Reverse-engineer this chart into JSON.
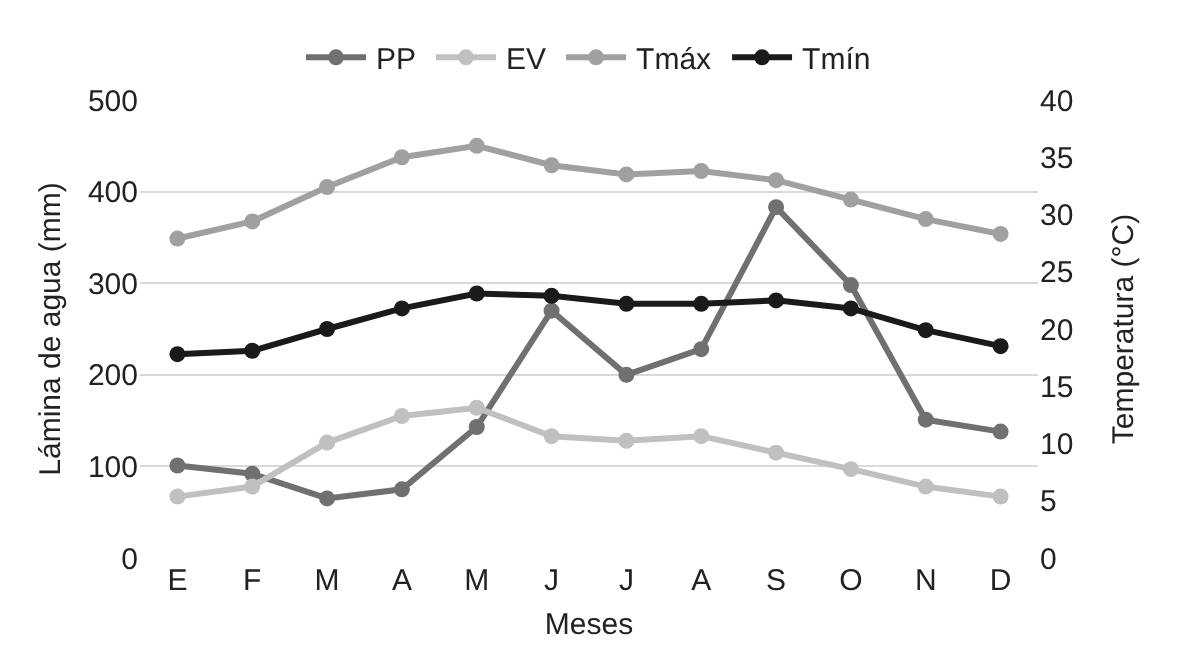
{
  "chart_data": {
    "type": "line",
    "xlabel": "Meses",
    "ylabel": "Lámina de agua (mm)",
    "y2label": "Temperatura (°C)",
    "categories": [
      "E",
      "F",
      "M",
      "A",
      "M",
      "J",
      "J",
      "A",
      "S",
      "O",
      "N",
      "D"
    ],
    "series": [
      {
        "name": "PP",
        "color": "#707070",
        "values": [
          101,
          92,
          65,
          75,
          143,
          270,
          200,
          228,
          383,
          298,
          151,
          138
        ]
      },
      {
        "name": "EV",
        "color": "#c0c0c0",
        "values": [
          67,
          78,
          126,
          155,
          164,
          133,
          128,
          133,
          115,
          97,
          78,
          67
        ]
      },
      {
        "name": "Tmáx",
        "color": "#a0a0a0",
        "axis": "y2",
        "values": [
          27.9,
          29.4,
          32.4,
          35,
          36,
          34.3,
          33.5,
          33.8,
          33,
          31.3,
          29.6,
          28.3
        ]
      },
      {
        "name": "Tmín",
        "color": "#1a1a1a",
        "axis": "y2",
        "values": [
          17.8,
          18.1,
          20,
          21.8,
          23.1,
          22.9,
          22.2,
          22.2,
          22.5,
          21.8,
          19.9,
          18.5
        ]
      }
    ],
    "ylim": [
      0,
      500
    ],
    "yticks": [
      0,
      100,
      200,
      300,
      400,
      500
    ],
    "y2lim": [
      0,
      40
    ],
    "y2ticks": [
      0,
      5,
      10,
      15,
      20,
      25,
      30,
      35,
      40
    ],
    "grid": "y",
    "legend": "top",
    "marker": "circle",
    "line_style": "solid"
  }
}
